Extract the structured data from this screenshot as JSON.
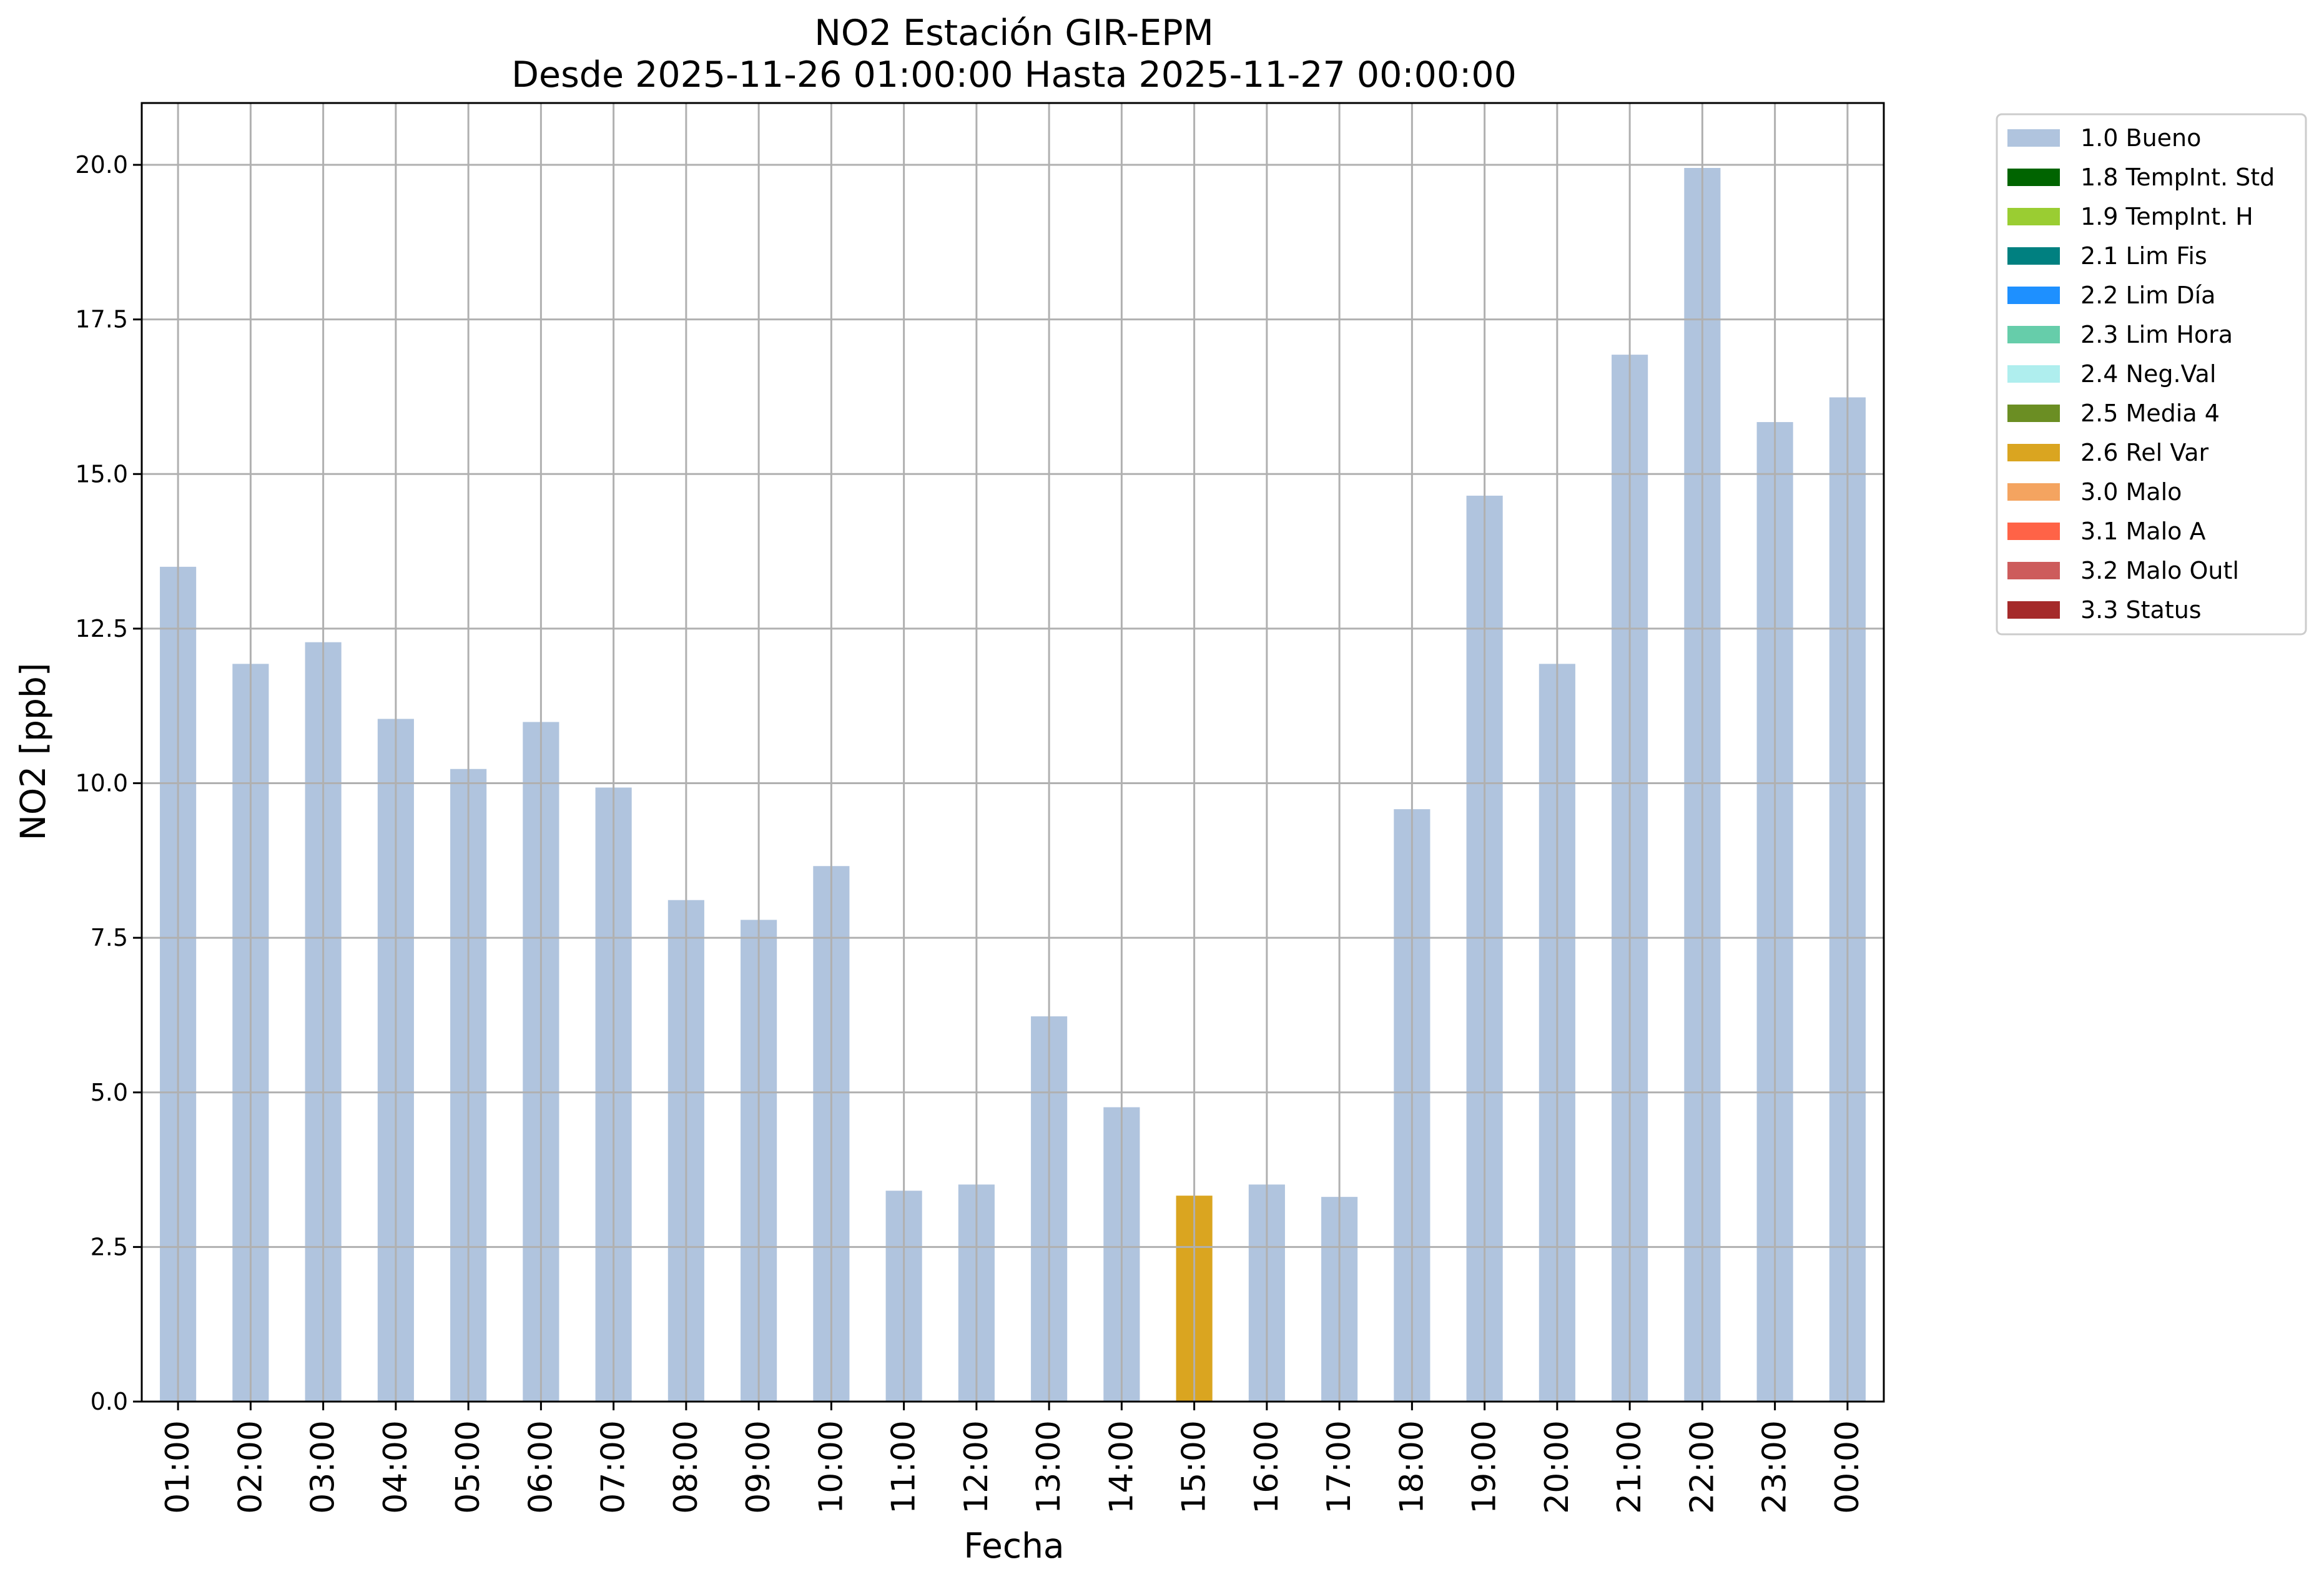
{
  "chart_data": {
    "type": "bar",
    "title": "NO2 Estación GIR-EPM",
    "subtitle": "Desde 2025-11-26 01:00:00 Hasta 2025-11-27 00:00:00",
    "xlabel": "Fecha",
    "ylabel": "NO2 [ppb]",
    "ylim": [
      0,
      21
    ],
    "yticks": [
      "0.0",
      "2.5",
      "5.0",
      "7.5",
      "10.0",
      "12.5",
      "15.0",
      "17.5",
      "20.0"
    ],
    "grid": true,
    "legend_position": "outside-right-top",
    "categories": [
      "01:00",
      "02:00",
      "03:00",
      "04:00",
      "05:00",
      "06:00",
      "07:00",
      "08:00",
      "09:00",
      "10:00",
      "11:00",
      "12:00",
      "13:00",
      "14:00",
      "15:00",
      "16:00",
      "17:00",
      "18:00",
      "19:00",
      "20:00",
      "21:00",
      "22:00",
      "23:00",
      "00:00"
    ],
    "values": [
      13.5,
      11.93,
      12.28,
      11.04,
      10.23,
      10.99,
      9.93,
      8.11,
      7.79,
      8.66,
      3.41,
      3.51,
      6.23,
      4.76,
      3.33,
      3.51,
      3.31,
      9.58,
      14.65,
      11.93,
      16.93,
      19.95,
      15.84,
      16.24
    ],
    "flags": [
      "1.0 Bueno",
      "1.0 Bueno",
      "1.0 Bueno",
      "1.0 Bueno",
      "1.0 Bueno",
      "1.0 Bueno",
      "1.0 Bueno",
      "1.0 Bueno",
      "1.0 Bueno",
      "1.0 Bueno",
      "1.0 Bueno",
      "1.0 Bueno",
      "1.0 Bueno",
      "1.0 Bueno",
      "2.6 Rel Var",
      "1.0 Bueno",
      "1.0 Bueno",
      "1.0 Bueno",
      "1.0 Bueno",
      "1.0 Bueno",
      "1.0 Bueno",
      "1.0 Bueno",
      "1.0 Bueno",
      "1.0 Bueno"
    ],
    "legend": [
      {
        "label": "1.0 Bueno",
        "color": "#b0c4de"
      },
      {
        "label": "1.8 TempInt. Std",
        "color": "#006400"
      },
      {
        "label": "1.9 TempInt. H",
        "color": "#9acd32"
      },
      {
        "label": "2.1 Lim Fis",
        "color": "#008080"
      },
      {
        "label": "2.2 Lim Día",
        "color": "#1e90ff"
      },
      {
        "label": "2.3 Lim Hora",
        "color": "#66cdaa"
      },
      {
        "label": "2.4 Neg.Val",
        "color": "#afeeee"
      },
      {
        "label": "2.5 Media 4",
        "color": "#6b8e23"
      },
      {
        "label": "2.6 Rel Var",
        "color": "#daa520"
      },
      {
        "label": "3.0 Malo",
        "color": "#f4a460"
      },
      {
        "label": "3.1 Malo A",
        "color": "#ff6347"
      },
      {
        "label": "3.2 Malo Outl",
        "color": "#cd5c5c"
      },
      {
        "label": "3.3 Status",
        "color": "#a52a2a"
      }
    ]
  }
}
